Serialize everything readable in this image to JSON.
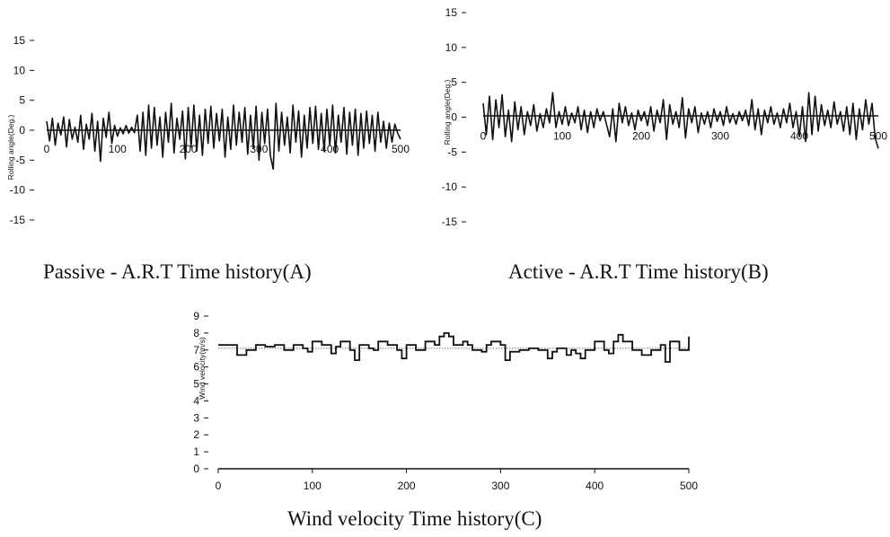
{
  "chart_data": [
    {
      "type": "line",
      "title": "Passive - A.R.T Time history(A)",
      "xlabel": "",
      "ylabel": "Rolling angle(Deg.)",
      "xlim": [
        0,
        500
      ],
      "ylim": [
        -15,
        15
      ],
      "x_ticks": [
        "0",
        "100",
        "200",
        "300",
        "400",
        "500"
      ],
      "y_ticks": [
        "15",
        "10",
        "5",
        "0",
        "-5",
        "-10",
        "-15"
      ],
      "series": [
        {
          "x": [
            0,
            4,
            8,
            12,
            16,
            20,
            24,
            28,
            32,
            36,
            40,
            44,
            48,
            52,
            56,
            60,
            64,
            68,
            72,
            76,
            80,
            84,
            88,
            92,
            96,
            100,
            104,
            108,
            112,
            116,
            120,
            124,
            128,
            132,
            136,
            140,
            144,
            148,
            152,
            156,
            160,
            164,
            168,
            172,
            176,
            180,
            184,
            188,
            192,
            196,
            200,
            204,
            208,
            212,
            216,
            220,
            224,
            228,
            232,
            236,
            240,
            244,
            248,
            252,
            256,
            260,
            264,
            268,
            272,
            276,
            280,
            284,
            288,
            292,
            296,
            300,
            304,
            308,
            312,
            316,
            320,
            324,
            328,
            332,
            336,
            340,
            344,
            348,
            352,
            356,
            360,
            364,
            368,
            372,
            376,
            380,
            384,
            388,
            392,
            396,
            400,
            404,
            408,
            412,
            416,
            420,
            424,
            428,
            432,
            436,
            440,
            444,
            448,
            452,
            456,
            460,
            464,
            468,
            472,
            476,
            480,
            484,
            488,
            492,
            496,
            500
          ],
          "values": [
            1.5,
            -1.8,
            2.0,
            -2.5,
            1.2,
            -0.8,
            2.2,
            -2.8,
            1.8,
            -1.5,
            0.5,
            -2.0,
            2.5,
            -3.2,
            1.0,
            -1.5,
            2.8,
            -3.5,
            1.5,
            -5.2,
            2.0,
            -1.2,
            3.0,
            -2.2,
            0.8,
            -1.0,
            0.4,
            -0.6,
            0.8,
            -0.5,
            0.5,
            -0.4,
            2.5,
            -3.5,
            3.0,
            -4.2,
            4.2,
            -3.0,
            3.8,
            -2.5,
            2.2,
            -4.5,
            3.0,
            -2.0,
            4.5,
            -3.8,
            2.0,
            -1.5,
            3.2,
            -4.8,
            3.8,
            -2.8,
            4.2,
            -3.5,
            2.5,
            -4.2,
            3.5,
            -2.2,
            4.0,
            -3.0,
            2.8,
            -1.8,
            3.5,
            -4.5,
            2.2,
            -3.2,
            4.2,
            -2.5,
            3.0,
            -2.0,
            3.8,
            -4.0,
            2.5,
            -3.0,
            4.0,
            -5.0,
            3.0,
            -2.2,
            3.5,
            -4.2,
            -6.5,
            4.5,
            -3.5,
            3.0,
            -2.5,
            2.2,
            -3.8,
            4.2,
            -2.0,
            3.2,
            -4.5,
            2.5,
            -3.0,
            3.8,
            -2.2,
            4.0,
            -3.2,
            2.8,
            -3.5,
            3.5,
            -2.5,
            4.2,
            -3.8,
            2.5,
            -2.0,
            3.8,
            -4.0,
            3.0,
            -2.5,
            3.5,
            -4.2,
            2.8,
            -3.0,
            3.2,
            -2.2,
            2.5,
            -3.5,
            3.0,
            -2.0,
            1.5,
            -3.0,
            1.2,
            -2.0,
            1.0,
            -0.5,
            -1.5
          ]
        }
      ]
    },
    {
      "type": "line",
      "title": "Active - A.R.T Time history(B)",
      "xlabel": "",
      "ylabel": "Rolling angle(Deg.)",
      "xlim": [
        0,
        500
      ],
      "ylim": [
        -15,
        15
      ],
      "x_ticks": [
        "0",
        "100",
        "200",
        "300",
        "400",
        "500"
      ],
      "y_ticks": [
        "15",
        "10",
        "5",
        "0",
        "-5",
        "-10",
        "-15"
      ],
      "series": [
        {
          "x": [
            0,
            4,
            8,
            12,
            16,
            20,
            24,
            28,
            32,
            36,
            40,
            44,
            48,
            52,
            56,
            60,
            64,
            68,
            72,
            76,
            80,
            84,
            88,
            92,
            96,
            100,
            104,
            108,
            112,
            116,
            120,
            124,
            128,
            132,
            136,
            140,
            144,
            148,
            152,
            156,
            160,
            164,
            168,
            172,
            176,
            180,
            184,
            188,
            192,
            196,
            200,
            204,
            208,
            212,
            216,
            220,
            224,
            228,
            232,
            236,
            240,
            244,
            248,
            252,
            256,
            260,
            264,
            268,
            272,
            276,
            280,
            284,
            288,
            292,
            296,
            300,
            304,
            308,
            312,
            316,
            320,
            324,
            328,
            332,
            336,
            340,
            344,
            348,
            352,
            356,
            360,
            364,
            368,
            372,
            376,
            380,
            384,
            388,
            392,
            396,
            400,
            404,
            408,
            412,
            416,
            420,
            424,
            428,
            432,
            436,
            440,
            444,
            448,
            452,
            456,
            460,
            464,
            468,
            472,
            476,
            480,
            484,
            488,
            492,
            496,
            500
          ],
          "values": [
            2.0,
            -2.5,
            3.0,
            -3.2,
            2.5,
            -1.5,
            3.2,
            -2.8,
            1.0,
            -3.5,
            2.2,
            -1.8,
            1.5,
            -2.5,
            0.8,
            -1.2,
            1.8,
            -2.0,
            0.5,
            -1.5,
            1.2,
            -0.8,
            3.5,
            -1.5,
            0.8,
            -1.0,
            1.5,
            -1.2,
            0.6,
            -0.8,
            1.5,
            -1.8,
            1.0,
            -2.2,
            0.8,
            -1.5,
            1.2,
            -0.5,
            0.8,
            -1.0,
            -2.8,
            1.2,
            -3.5,
            2.0,
            -0.8,
            1.5,
            -1.2,
            0.6,
            -1.8,
            1.0,
            -0.5,
            0.8,
            -1.2,
            1.5,
            -2.0,
            1.0,
            -0.8,
            2.5,
            -3.2,
            1.8,
            -1.0,
            0.8,
            -1.5,
            2.8,
            -3.0,
            1.2,
            -0.8,
            1.5,
            -2.2,
            0.6,
            -1.0,
            0.8,
            -1.5,
            1.2,
            -0.6,
            0.8,
            -1.2,
            1.5,
            -0.8,
            0.5,
            -1.0,
            0.8,
            -0.5,
            1.0,
            -1.2,
            2.5,
            -1.8,
            1.2,
            -2.5,
            1.0,
            -0.8,
            1.5,
            -1.0,
            0.6,
            -1.5,
            1.2,
            -0.8,
            2.0,
            -1.5,
            0.8,
            -2.8,
            1.5,
            -3.5,
            3.5,
            -2.5,
            3.0,
            -2.0,
            1.8,
            -1.2,
            1.0,
            -1.5,
            2.2,
            -1.0,
            0.8,
            -2.0,
            1.5,
            -2.5,
            2.0,
            -3.2,
            1.2,
            -1.8,
            2.5,
            -1.0,
            2.0,
            -3.0,
            -4.5
          ]
        }
      ]
    },
    {
      "type": "line",
      "title": "Wind velocity Time history(C)",
      "xlabel": "",
      "ylabel": "Wind velocity(m/s)",
      "xlim": [
        0,
        500
      ],
      "ylim": [
        0,
        9
      ],
      "x_ticks": [
        "0",
        "100",
        "200",
        "300",
        "400",
        "500"
      ],
      "y_ticks": [
        "9",
        "8",
        "7",
        "6",
        "5",
        "4",
        "3",
        "2",
        "1",
        "0"
      ],
      "reference_line": 7.1,
      "series": [
        {
          "x": [
            0,
            5,
            10,
            15,
            20,
            25,
            30,
            35,
            40,
            45,
            50,
            55,
            60,
            65,
            70,
            75,
            80,
            85,
            90,
            95,
            100,
            105,
            110,
            115,
            120,
            125,
            130,
            135,
            140,
            145,
            150,
            155,
            160,
            165,
            170,
            175,
            180,
            185,
            190,
            195,
            200,
            205,
            210,
            215,
            220,
            225,
            230,
            235,
            240,
            245,
            250,
            255,
            260,
            265,
            270,
            275,
            280,
            285,
            290,
            295,
            300,
            305,
            310,
            315,
            320,
            325,
            330,
            335,
            340,
            345,
            350,
            355,
            360,
            365,
            370,
            375,
            380,
            385,
            390,
            395,
            400,
            405,
            410,
            415,
            420,
            425,
            430,
            435,
            440,
            445,
            450,
            455,
            460,
            465,
            470,
            475,
            480,
            485,
            490,
            495,
            500
          ],
          "values": [
            7.3,
            7.3,
            7.3,
            7.3,
            6.7,
            6.7,
            7.0,
            7.0,
            7.3,
            7.3,
            7.2,
            7.2,
            7.3,
            7.3,
            7.0,
            7.0,
            7.3,
            7.3,
            7.1,
            6.9,
            7.5,
            7.5,
            7.3,
            7.3,
            6.8,
            7.2,
            7.5,
            7.5,
            7.0,
            6.4,
            7.3,
            7.3,
            7.1,
            7.0,
            7.5,
            7.5,
            7.3,
            7.3,
            7.0,
            6.5,
            7.3,
            7.3,
            7.0,
            7.0,
            7.5,
            7.5,
            7.3,
            7.8,
            8.0,
            7.8,
            7.3,
            7.3,
            7.5,
            7.3,
            7.0,
            7.0,
            6.9,
            7.3,
            7.5,
            7.5,
            7.3,
            6.4,
            6.9,
            6.9,
            7.0,
            7.0,
            7.1,
            7.1,
            7.0,
            7.0,
            6.5,
            6.9,
            7.1,
            7.1,
            6.7,
            7.0,
            6.8,
            6.5,
            7.0,
            7.0,
            7.5,
            7.5,
            7.0,
            6.8,
            7.5,
            7.9,
            7.5,
            7.5,
            7.0,
            7.0,
            6.7,
            6.7,
            7.0,
            7.0,
            7.3,
            6.3,
            7.5,
            7.5,
            7.0,
            7.0,
            7.8
          ]
        }
      ]
    }
  ]
}
